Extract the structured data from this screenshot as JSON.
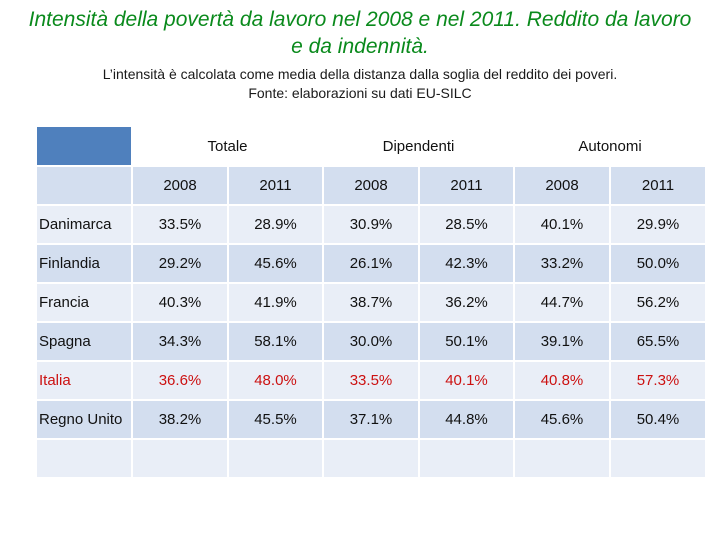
{
  "title": "Intensità della povertà da lavoro nel 2008 e nel 2011. Reddito da lavoro e da indennità.",
  "subtitle_line1": "L’intensità è calcolata come media della distanza dalla soglia del reddito dei poveri.",
  "subtitle_line2": "Fonte: elaborazioni su dati EU-SILC",
  "groups": [
    "Totale",
    "Dipendenti",
    "Autonomi"
  ],
  "years": [
    "2008",
    "2011",
    "2008",
    "2011",
    "2008",
    "2011"
  ],
  "rows": [
    {
      "country": "Danimarca",
      "values": [
        "33.5%",
        "28.9%",
        "30.9%",
        "28.5%",
        "40.1%",
        "29.9%"
      ]
    },
    {
      "country": "Finlandia",
      "values": [
        "29.2%",
        "45.6%",
        "26.1%",
        "42.3%",
        "33.2%",
        "50.0%"
      ]
    },
    {
      "country": "Francia",
      "values": [
        "40.3%",
        "41.9%",
        "38.7%",
        "36.2%",
        "44.7%",
        "56.2%"
      ]
    },
    {
      "country": "Spagna",
      "values": [
        "34.3%",
        "58.1%",
        "30.0%",
        "50.1%",
        "39.1%",
        "65.5%"
      ]
    },
    {
      "country": "Italia",
      "values": [
        "36.6%",
        "48.0%",
        "33.5%",
        "40.1%",
        "40.8%",
        "57.3%"
      ]
    },
    {
      "country": "Regno Unito",
      "values": [
        "38.2%",
        "45.5%",
        "37.1%",
        "44.8%",
        "45.6%",
        "50.4%"
      ]
    }
  ],
  "colors": {
    "title": "#0a8a1c",
    "header": "#4f80bd",
    "highlight": "#cc1111"
  }
}
